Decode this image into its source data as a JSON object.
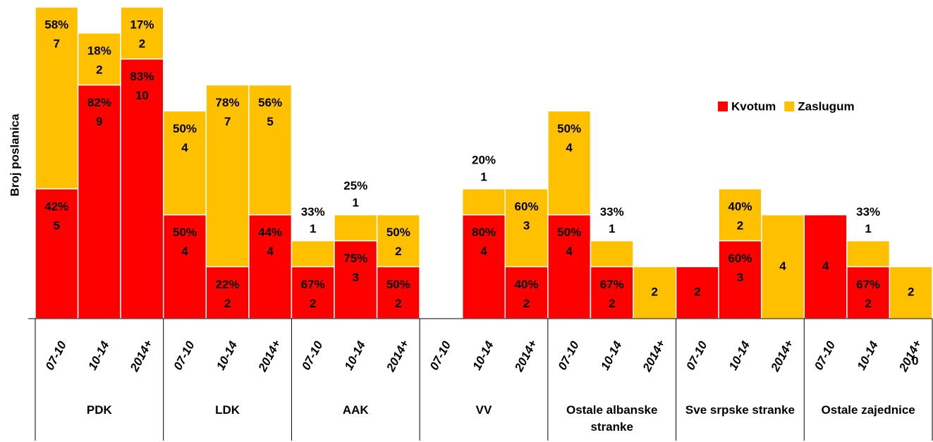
{
  "chart_data": {
    "type": "bar",
    "stacked": true,
    "y_label": "Broj poslanica",
    "groups": [
      "PDK",
      "LDK",
      "AAK",
      "VV",
      "Ostale albanske stranke",
      "Sve srpske stranke",
      "Ostale zajednice"
    ],
    "categories": [
      "07-10",
      "10-14",
      "2014+",
      "07-10",
      "10-14",
      "2014+",
      "07-10",
      "10-14",
      "2014+",
      "07-10",
      "10-14",
      "2014+",
      "07-10",
      "10-14",
      "2014+",
      "07-10",
      "10-14",
      "2014+",
      "07-10",
      "10-14",
      "2014+"
    ],
    "series": [
      {
        "name": "Kvotum",
        "color": "#ff0000",
        "values": [
          5,
          9,
          10,
          4,
          2,
          4,
          2,
          3,
          2,
          0,
          4,
          2,
          4,
          2,
          0,
          2,
          3,
          0,
          4,
          2,
          0
        ],
        "value_labels": [
          "42%",
          "82%",
          "83%",
          "50%",
          "22%",
          "44%",
          "67%",
          "75%",
          "50%",
          null,
          "80%",
          "40%",
          "50%",
          "67%",
          null,
          null,
          "60%",
          null,
          null,
          "67%",
          null
        ]
      },
      {
        "name": "Zaslugum",
        "color": "#ffc000",
        "values": [
          7,
          2,
          2,
          4,
          7,
          5,
          1,
          1,
          2,
          0,
          1,
          3,
          4,
          1,
          2,
          0,
          2,
          4,
          0,
          1,
          2
        ],
        "value_labels": [
          "58%",
          "18%",
          "17%",
          "50%",
          "78%",
          "56%",
          "33%",
          "25%",
          "50%",
          null,
          "20%",
          "60%",
          "50%",
          "33%",
          null,
          null,
          "40%",
          null,
          null,
          "33%",
          null
        ]
      }
    ],
    "annotations": [
      "0"
    ],
    "ylim": [
      0,
      12
    ],
    "legend": "upper right"
  }
}
